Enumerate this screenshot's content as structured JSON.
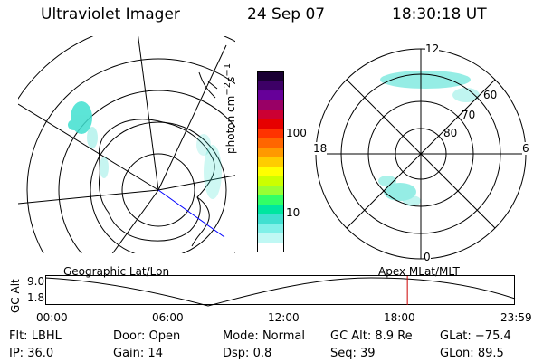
{
  "header": {
    "instrument": "Ultraviolet Imager",
    "date": "24 Sep 07",
    "time": "18:30:18 UT"
  },
  "colors": {
    "emission": "#40e0d0",
    "marker": "#cc0000",
    "line": "#000000",
    "pass_line": "#0000ff"
  },
  "left_map": {
    "label": "Geographic Lat/Lon"
  },
  "right_map": {
    "label": "Apex MLat/MLT",
    "mlt_labels": {
      "top": "12",
      "left": "18",
      "right": "6",
      "bottom": "0"
    },
    "lat_labels": [
      "60",
      "70",
      "80"
    ]
  },
  "colorbar": {
    "unit_label": "photon cm",
    "unit_sup1": "−2",
    "unit_mid": "s",
    "unit_sup2": "−1",
    "ticks": [
      "100",
      "10"
    ],
    "scale": "log",
    "colors_top_to_bottom": [
      "#1a0033",
      "#3d0066",
      "#660099",
      "#990066",
      "#cc0033",
      "#e60000",
      "#ff3300",
      "#ff6600",
      "#ff9900",
      "#ffcc00",
      "#ffff00",
      "#ccff00",
      "#99ff33",
      "#33ff66",
      "#00e6a0",
      "#40e0d0",
      "#80f0e8",
      "#c0f8f4",
      "#ffffff"
    ]
  },
  "altitude_plot": {
    "axis_label": "GC Alt",
    "y_ticks": [
      "9.0",
      "1.8"
    ],
    "x_ticks": [
      "00:00",
      "06:00",
      "12:00",
      "18:00",
      "23:59"
    ],
    "current_time_fraction": 0.771
  },
  "info": {
    "row1": [
      {
        "label": "Flt:",
        "value": "LBHL"
      },
      {
        "label": "Door:",
        "value": "Open"
      },
      {
        "label": "Mode:",
        "value": "Normal"
      },
      {
        "label": "GC Alt:",
        "value": "8.9 Re"
      },
      {
        "label": "GLat:",
        "value": "−75.4"
      }
    ],
    "row2": [
      {
        "label": "IP:",
        "value": "36.0"
      },
      {
        "label": "Gain:",
        "value": "14"
      },
      {
        "label": "Dsp:",
        "value": "0.8"
      },
      {
        "label": "Seq:",
        "value": "39"
      },
      {
        "label": "GLon:",
        "value": "89.5"
      }
    ]
  }
}
